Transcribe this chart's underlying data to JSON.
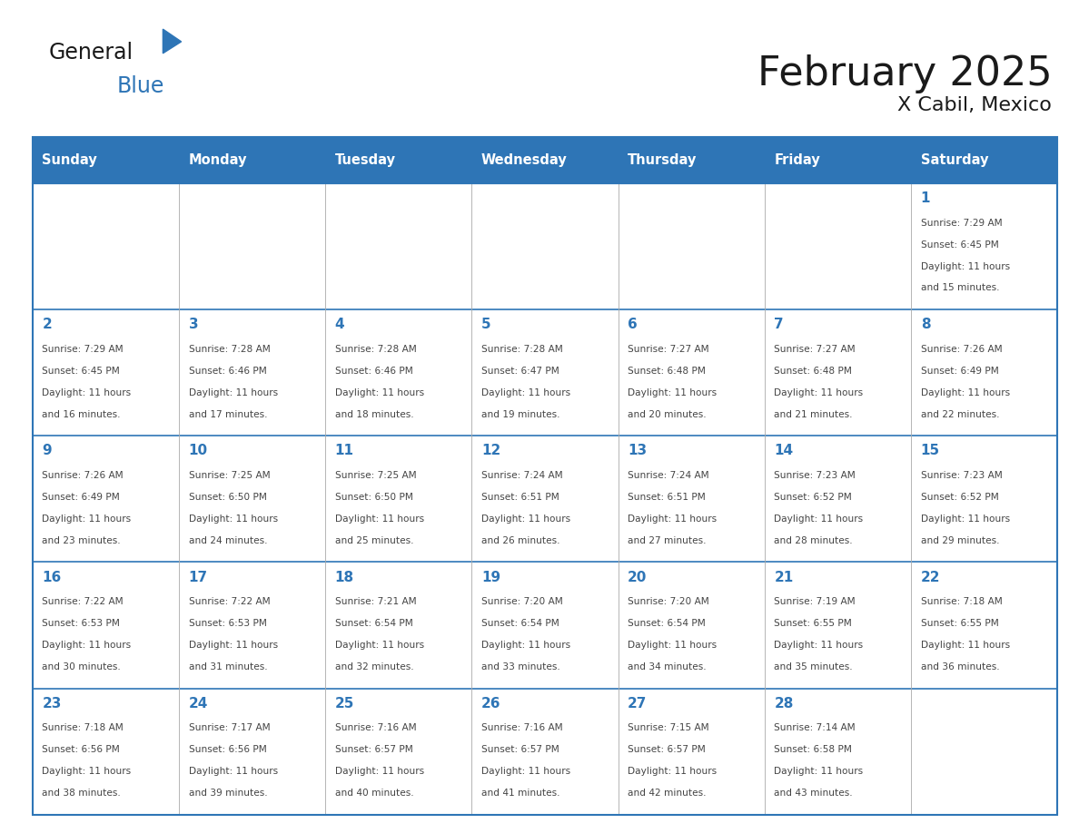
{
  "title": "February 2025",
  "subtitle": "X Cabil, Mexico",
  "header_bg": "#2E75B6",
  "header_text_color": "#FFFFFF",
  "cell_bg": "#FFFFFF",
  "border_color": "#2E75B6",
  "grid_color": "#AAAAAA",
  "day_names": [
    "Sunday",
    "Monday",
    "Tuesday",
    "Wednesday",
    "Thursday",
    "Friday",
    "Saturday"
  ],
  "title_color": "#1A1A1A",
  "subtitle_color": "#1A1A1A",
  "day_num_color": "#2E75B6",
  "cell_text_color": "#444444",
  "logo_general_color": "#1A1A1A",
  "logo_blue_color": "#2E75B6",
  "weeks": [
    [
      {
        "day": "",
        "sunrise": "",
        "sunset": "",
        "daylight": ""
      },
      {
        "day": "",
        "sunrise": "",
        "sunset": "",
        "daylight": ""
      },
      {
        "day": "",
        "sunrise": "",
        "sunset": "",
        "daylight": ""
      },
      {
        "day": "",
        "sunrise": "",
        "sunset": "",
        "daylight": ""
      },
      {
        "day": "",
        "sunrise": "",
        "sunset": "",
        "daylight": ""
      },
      {
        "day": "",
        "sunrise": "",
        "sunset": "",
        "daylight": ""
      },
      {
        "day": "1",
        "sunrise": "7:29 AM",
        "sunset": "6:45 PM",
        "daylight": "11 hours and 15 minutes."
      }
    ],
    [
      {
        "day": "2",
        "sunrise": "7:29 AM",
        "sunset": "6:45 PM",
        "daylight": "11 hours and 16 minutes."
      },
      {
        "day": "3",
        "sunrise": "7:28 AM",
        "sunset": "6:46 PM",
        "daylight": "11 hours and 17 minutes."
      },
      {
        "day": "4",
        "sunrise": "7:28 AM",
        "sunset": "6:46 PM",
        "daylight": "11 hours and 18 minutes."
      },
      {
        "day": "5",
        "sunrise": "7:28 AM",
        "sunset": "6:47 PM",
        "daylight": "11 hours and 19 minutes."
      },
      {
        "day": "6",
        "sunrise": "7:27 AM",
        "sunset": "6:48 PM",
        "daylight": "11 hours and 20 minutes."
      },
      {
        "day": "7",
        "sunrise": "7:27 AM",
        "sunset": "6:48 PM",
        "daylight": "11 hours and 21 minutes."
      },
      {
        "day": "8",
        "sunrise": "7:26 AM",
        "sunset": "6:49 PM",
        "daylight": "11 hours and 22 minutes."
      }
    ],
    [
      {
        "day": "9",
        "sunrise": "7:26 AM",
        "sunset": "6:49 PM",
        "daylight": "11 hours and 23 minutes."
      },
      {
        "day": "10",
        "sunrise": "7:25 AM",
        "sunset": "6:50 PM",
        "daylight": "11 hours and 24 minutes."
      },
      {
        "day": "11",
        "sunrise": "7:25 AM",
        "sunset": "6:50 PM",
        "daylight": "11 hours and 25 minutes."
      },
      {
        "day": "12",
        "sunrise": "7:24 AM",
        "sunset": "6:51 PM",
        "daylight": "11 hours and 26 minutes."
      },
      {
        "day": "13",
        "sunrise": "7:24 AM",
        "sunset": "6:51 PM",
        "daylight": "11 hours and 27 minutes."
      },
      {
        "day": "14",
        "sunrise": "7:23 AM",
        "sunset": "6:52 PM",
        "daylight": "11 hours and 28 minutes."
      },
      {
        "day": "15",
        "sunrise": "7:23 AM",
        "sunset": "6:52 PM",
        "daylight": "11 hours and 29 minutes."
      }
    ],
    [
      {
        "day": "16",
        "sunrise": "7:22 AM",
        "sunset": "6:53 PM",
        "daylight": "11 hours and 30 minutes."
      },
      {
        "day": "17",
        "sunrise": "7:22 AM",
        "sunset": "6:53 PM",
        "daylight": "11 hours and 31 minutes."
      },
      {
        "day": "18",
        "sunrise": "7:21 AM",
        "sunset": "6:54 PM",
        "daylight": "11 hours and 32 minutes."
      },
      {
        "day": "19",
        "sunrise": "7:20 AM",
        "sunset": "6:54 PM",
        "daylight": "11 hours and 33 minutes."
      },
      {
        "day": "20",
        "sunrise": "7:20 AM",
        "sunset": "6:54 PM",
        "daylight": "11 hours and 34 minutes."
      },
      {
        "day": "21",
        "sunrise": "7:19 AM",
        "sunset": "6:55 PM",
        "daylight": "11 hours and 35 minutes."
      },
      {
        "day": "22",
        "sunrise": "7:18 AM",
        "sunset": "6:55 PM",
        "daylight": "11 hours and 36 minutes."
      }
    ],
    [
      {
        "day": "23",
        "sunrise": "7:18 AM",
        "sunset": "6:56 PM",
        "daylight": "11 hours and 38 minutes."
      },
      {
        "day": "24",
        "sunrise": "7:17 AM",
        "sunset": "6:56 PM",
        "daylight": "11 hours and 39 minutes."
      },
      {
        "day": "25",
        "sunrise": "7:16 AM",
        "sunset": "6:57 PM",
        "daylight": "11 hours and 40 minutes."
      },
      {
        "day": "26",
        "sunrise": "7:16 AM",
        "sunset": "6:57 PM",
        "daylight": "11 hours and 41 minutes."
      },
      {
        "day": "27",
        "sunrise": "7:15 AM",
        "sunset": "6:57 PM",
        "daylight": "11 hours and 42 minutes."
      },
      {
        "day": "28",
        "sunrise": "7:14 AM",
        "sunset": "6:58 PM",
        "daylight": "11 hours and 43 minutes."
      },
      {
        "day": "",
        "sunrise": "",
        "sunset": "",
        "daylight": ""
      }
    ]
  ]
}
